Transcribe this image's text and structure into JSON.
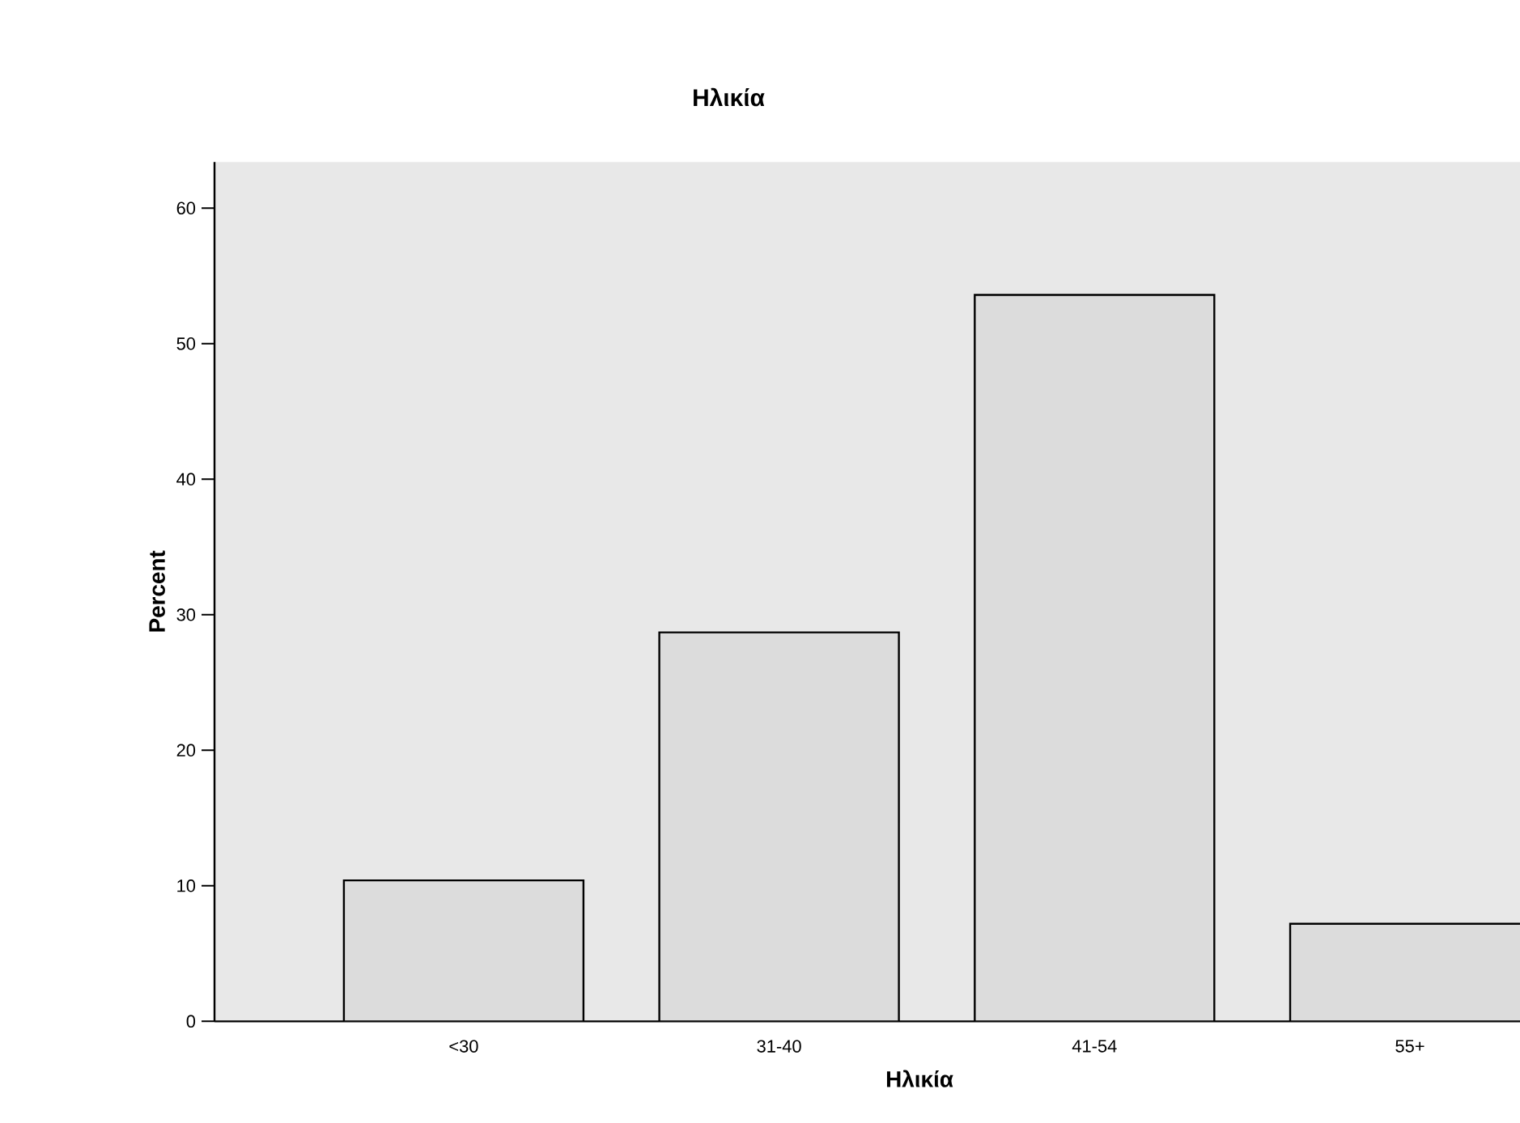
{
  "chart_data": {
    "type": "bar",
    "title": "Ηλικία",
    "xlabel": "Ηλικία",
    "ylabel": "Percent",
    "categories": [
      "<30",
      "31-40",
      "41-54",
      "55+"
    ],
    "values": [
      10.4,
      28.7,
      53.6,
      7.2
    ],
    "color": "#dcdcdc",
    "ylim": [
      0,
      63.4
    ],
    "yticks": [
      0,
      10,
      20,
      30,
      40,
      50,
      60
    ],
    "grid": false
  }
}
